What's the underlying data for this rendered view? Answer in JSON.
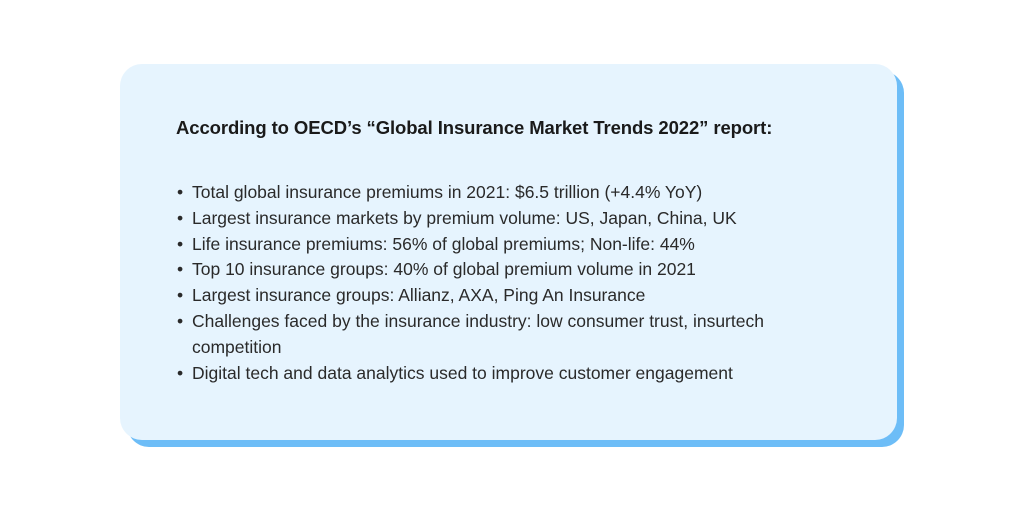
{
  "card": {
    "title": "According to OECD’s “Global Insurance Market Trends 2022” report:",
    "items": [
      "Total global insurance premiums in 2021: $6.5 trillion (+4.4% YoY)",
      "Largest insurance markets by premium volume: US, Japan, China, UK",
      "Life insurance premiums: 56% of global premiums; Non-life: 44%",
      "Top 10 insurance groups: 40% of global premium volume in 2021",
      "Largest insurance groups: Allianz, AXA, Ping An Insurance",
      "Challenges faced by the insurance industry: low consumer trust, insurtech competition",
      "Digital tech and data analytics used to improve customer engagement"
    ],
    "bullet": "•"
  },
  "colors": {
    "card_bg": "#e6f4fe",
    "shadow": "#6dbdf7"
  }
}
